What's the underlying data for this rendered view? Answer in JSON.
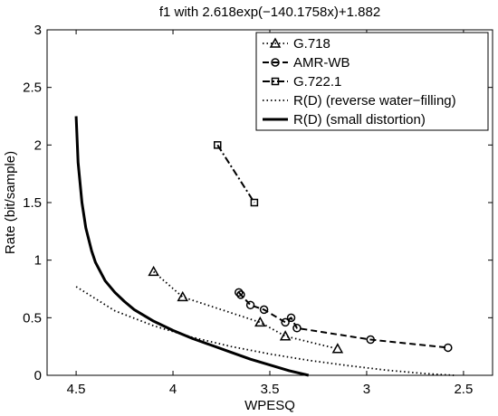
{
  "chart_data": {
    "type": "line",
    "title": "f1 with 2.618exp(−140.1758x)+1.882",
    "xlabel": "WPESQ",
    "ylabel": "Rate (bit/sample)",
    "xlim": [
      4.65,
      2.35
    ],
    "ylim": [
      0,
      3
    ],
    "x_reversed": true,
    "xticks": [
      "4.5",
      "4",
      "3.5",
      "3",
      "2.5"
    ],
    "yticks": [
      "0",
      "0.5",
      "1",
      "1.5",
      "2",
      "2.5",
      "3"
    ],
    "grid": false,
    "legend_position": "top-right",
    "series": [
      {
        "name": "G.718",
        "style": "dotted",
        "marker": "triangle",
        "color": "#000000",
        "x": [
          4.1,
          3.95,
          3.55,
          3.42,
          3.15
        ],
        "y": [
          0.9,
          0.68,
          0.46,
          0.34,
          0.23
        ]
      },
      {
        "name": "AMR-WB",
        "style": "dashed",
        "marker": "circle",
        "color": "#000000",
        "x": [
          3.66,
          3.65,
          3.6,
          3.53,
          3.42,
          3.39,
          3.36,
          2.98,
          2.58
        ],
        "y": [
          0.72,
          0.7,
          0.61,
          0.57,
          0.46,
          0.5,
          0.41,
          0.31,
          0.24
        ]
      },
      {
        "name": "G.722.1",
        "style": "dashdot",
        "marker": "square",
        "color": "#000000",
        "x": [
          3.77,
          3.58
        ],
        "y": [
          2.0,
          1.5
        ]
      },
      {
        "name": "R(D) (reverse water−filling)",
        "style": "dotted",
        "marker": "none",
        "color": "#000000",
        "x": [
          4.5,
          4.3,
          4.1,
          3.9,
          3.7,
          3.5,
          3.3,
          3.1,
          2.9,
          2.7,
          2.55
        ],
        "y": [
          0.77,
          0.56,
          0.43,
          0.33,
          0.25,
          0.185,
          0.13,
          0.085,
          0.045,
          0.015,
          0.0
        ]
      },
      {
        "name": "R(D) (small distortion)",
        "style": "solid",
        "marker": "none",
        "color": "#000000",
        "x": [
          4.5,
          4.49,
          4.47,
          4.45,
          4.42,
          4.4,
          4.35,
          4.3,
          4.25,
          4.2,
          4.1,
          4.0,
          3.9,
          3.8,
          3.7,
          3.6,
          3.5,
          3.4,
          3.3
        ],
        "y": [
          2.25,
          1.85,
          1.5,
          1.28,
          1.08,
          0.98,
          0.82,
          0.72,
          0.64,
          0.57,
          0.47,
          0.39,
          0.32,
          0.26,
          0.2,
          0.14,
          0.09,
          0.04,
          0.0
        ]
      }
    ]
  }
}
